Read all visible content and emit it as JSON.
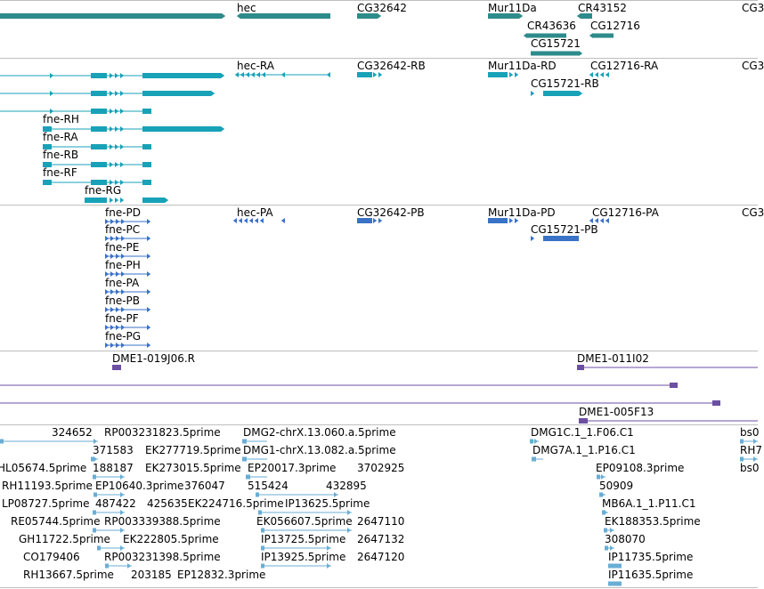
{
  "colors": {
    "gene": "#2e8b8b",
    "transcript": "#17a2b8",
    "protein": "#3a72c8",
    "clone": "#6b4fa3",
    "est": "#6aaed6",
    "separator": "#bfbfbf"
  },
  "tracks": {
    "genes": {
      "labels": [
        "hec",
        "CG32642",
        "Mur11Da",
        "CR43152",
        "CR43636",
        "CG12716",
        "CG15721",
        "CG3"
      ]
    },
    "transcripts": {
      "labels": [
        "hec-RA",
        "CG32642-RB",
        "Mur11Da-RD",
        "CG12716-RA",
        "CG3",
        "CG15721-RB",
        "fne-RH",
        "fne-RA",
        "fne-RB",
        "fne-RF",
        "fne-RG"
      ]
    },
    "proteins": {
      "labels": [
        "fne-PD",
        "hec-PA",
        "CG32642-PB",
        "Mur11Da-PD",
        "CG12716-PA",
        "CG3",
        "CG15721-PB",
        "fne-PC",
        "fne-PE",
        "fne-PH",
        "fne-PA",
        "fne-PB",
        "fne-PF",
        "fne-PG"
      ]
    },
    "clones": {
      "labels": [
        "DME1-019J06.R",
        "DME1-011I02",
        "DME1-005F13"
      ]
    },
    "ests": {
      "labels": [
        "324652",
        "RP003231823.5prime",
        "DMG2-chrX.13.060.a.5prime",
        "DMG1C.1_1.F06.C1",
        "bs0",
        "371583",
        "EK277719.5prime",
        "DMG1-chrX.13.082.a.5prime",
        "DMG7A.1_1.P16.C1",
        "RH7",
        "HL05674.5prime",
        "188187",
        "EK273015.5prime",
        "EP20017.3prime",
        "3702925",
        "EP09108.3prime",
        "bs0",
        "RH11193.5prime",
        "EP10640.3prime",
        "376047",
        "515424",
        "432895",
        "50909",
        "LP08727.5prime",
        "487422",
        "425635",
        "EK224716.5prime",
        "IP13625.5prime",
        "MB6A.1_1.P11.C1",
        "RE05744.5prime",
        "RP003339388.5prime",
        "EK056607.5prime",
        "2647110",
        "EK188353.5prime",
        "GH11722.5prime",
        "EK222805.5prime",
        "IP13725.5prime",
        "2647132",
        "308070",
        "CO179406",
        "RP003231398.5prime",
        "IP13925.5prime",
        "2647120",
        "IP11735.5prime",
        "RH13667.5prime",
        "203185",
        "EP12832.3prime",
        "IP11635.5prime"
      ]
    }
  }
}
